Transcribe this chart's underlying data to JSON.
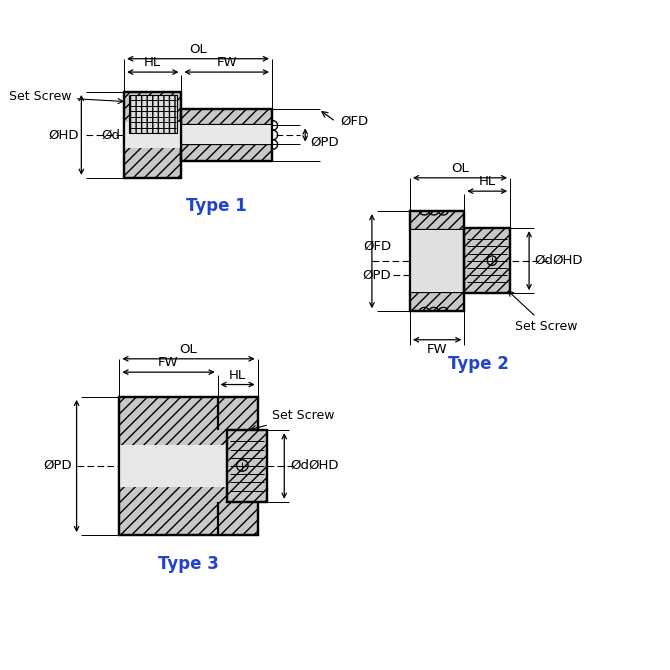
{
  "bg_color": "#ffffff",
  "line_color": "#000000",
  "type_label_color": "#2244cc",
  "type1_label": "Type 1",
  "type2_label": "Type 2",
  "type3_label": "Type 3",
  "fig_width": 6.7,
  "fig_height": 6.7,
  "dpi": 100,
  "hatch_color": "#aaaaaa",
  "dim_arrow_color": "#000000"
}
